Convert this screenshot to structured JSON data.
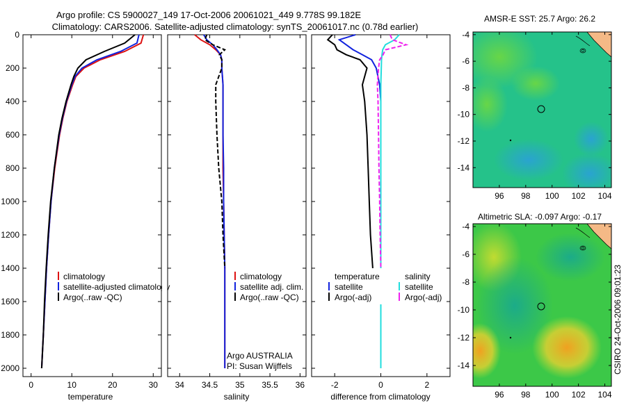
{
  "title_line1": "Argo profile: CS 5900027_149 17-Oct-2006 20061021_449 9.778S 99.182E",
  "title_line2": "Climatology: CARS2006. Satellite-adjusted climatology: synTS_20061017.nc (0.78d earlier)",
  "side_label": "CSIRO 24-Oct-2006 09:01:23",
  "colors": {
    "climatology": "#dd1111",
    "satellite": "#1122dd",
    "argo": "#000000",
    "salinity_satellite": "#22dddd",
    "salinity_argo": "#ee22ee",
    "land": "#f4b986",
    "sea": "#22c27a"
  },
  "chart_data": [
    {
      "type": "line",
      "name": "temperature-profile",
      "xlabel": "temperature",
      "xlim": [
        -2,
        32
      ],
      "ylim": [
        0,
        2050
      ],
      "xticks": [
        "0",
        "10",
        "20",
        "30"
      ],
      "yticks": [
        "0",
        "200",
        "400",
        "600",
        "800",
        "1000",
        "1200",
        "1400",
        "1600",
        "1800",
        "2000"
      ],
      "depth": [
        0,
        50,
        100,
        150,
        200,
        250,
        300,
        400,
        500,
        600,
        800,
        1000,
        1200,
        1400,
        1600,
        1800,
        2000
      ],
      "series": [
        {
          "name": "climatology",
          "values": [
            27.6,
            27.0,
            23.0,
            17.0,
            13.0,
            11.0,
            10.2,
            8.8,
            7.8,
            7.0,
            5.8,
            4.9,
            4.3,
            3.8,
            3.4,
            3.0,
            2.6
          ]
        },
        {
          "name": "satellite-adjusted climatology",
          "values": [
            26.5,
            26.0,
            22.0,
            16.2,
            12.5,
            10.8,
            10.0,
            8.7,
            7.7,
            6.9,
            5.7,
            4.9,
            4.3,
            3.8,
            3.4,
            3.0,
            2.6
          ]
        },
        {
          "name": "Argo(..raw -QC)",
          "values": [
            25.5,
            23.0,
            18.0,
            13.5,
            11.5,
            10.5,
            9.8,
            8.6,
            7.6,
            6.8,
            5.7,
            4.8,
            4.2,
            3.7,
            3.3,
            3.0,
            2.6
          ]
        }
      ],
      "legend": [
        "climatology",
        "satellite-adjusted climatology",
        "Argo(..raw -QC)"
      ]
    },
    {
      "type": "line",
      "name": "salinity-profile",
      "xlabel": "salinity",
      "xlim": [
        33.8,
        36.1
      ],
      "ylim": [
        0,
        2050
      ],
      "xticks": [
        "34",
        "34.5",
        "35",
        "35.5",
        "36"
      ],
      "depth": [
        0,
        30,
        60,
        90,
        120,
        150,
        200,
        300,
        400,
        600,
        800,
        1000,
        1200,
        1400,
        1600,
        1800,
        2000
      ],
      "series": [
        {
          "name": "climatology",
          "values": [
            34.25,
            34.35,
            34.5,
            34.6,
            34.68,
            34.7,
            34.7,
            34.72,
            34.72,
            34.72,
            34.72,
            34.73,
            34.74,
            34.75,
            34.75,
            34.75,
            34.75
          ]
        },
        {
          "name": "satellite adj. clim.",
          "values": [
            34.4,
            34.45,
            34.55,
            34.62,
            34.68,
            34.7,
            34.7,
            34.72,
            34.72,
            34.72,
            34.73,
            34.73,
            34.74,
            34.75,
            34.75,
            34.75,
            34.75
          ]
        },
        {
          "name": "Argo(..raw -QC)",
          "values": [
            34.45,
            34.42,
            34.55,
            34.75,
            34.66,
            34.7,
            34.7,
            34.6,
            34.6,
            34.62,
            34.65,
            34.7,
            34.72,
            34.75,
            null,
            null,
            null
          ]
        }
      ],
      "legend": [
        "climatology",
        "satellite adj. clim.",
        "Argo(..raw -QC)"
      ],
      "annotations": [
        "Argo AUSTRALIA",
        "PI: Susan Wijffels"
      ]
    },
    {
      "type": "line",
      "name": "difference-profile",
      "xlabel": "difference from climatology",
      "xlim": [
        -3,
        3
      ],
      "ylim": [
        0,
        2050
      ],
      "xticks": [
        "-2",
        "0",
        "2"
      ],
      "depth": [
        0,
        30,
        60,
        90,
        120,
        150,
        200,
        300,
        400,
        600,
        800,
        1000,
        1200,
        1400,
        1600,
        1800,
        2000
      ],
      "series": [
        {
          "name": "temperature satellite",
          "values": [
            -1.1,
            -1.8,
            -1.5,
            -1.2,
            -0.8,
            -0.4,
            -0.2,
            -0.05,
            0.0,
            0.0,
            0.0,
            0.0,
            0.0,
            0.0,
            0.0,
            0.0,
            0.0
          ]
        },
        {
          "name": "temperature Argo(-adj)",
          "values": [
            -2.1,
            -2.3,
            -2.0,
            -1.9,
            -1.5,
            -0.9,
            -0.6,
            -0.8,
            -0.7,
            -0.6,
            -0.55,
            -0.5,
            -0.45,
            -0.35,
            null,
            null,
            null
          ]
        },
        {
          "name": "salinity satellite",
          "values": [
            0.8,
            0.6,
            0.2,
            0.08,
            0.05,
            0.03,
            0.02,
            0.0,
            0.0,
            0.0,
            0.0,
            0.0,
            0.0,
            0.0,
            0.0,
            0.0,
            0.0
          ]
        },
        {
          "name": "salinity Argo(-adj)",
          "values": [
            0.4,
            0.5,
            1.1,
            0.2,
            0.1,
            -0.05,
            -0.1,
            -0.15,
            -0.12,
            -0.1,
            -0.08,
            -0.05,
            -0.03,
            0.0,
            null,
            null,
            null
          ]
        }
      ],
      "legend_headings": [
        "temperature",
        "salinity"
      ],
      "legend": [
        "satellite",
        "Argo(-adj)",
        "satellite",
        "Argo(-adj)"
      ]
    },
    {
      "type": "heatmap",
      "name": "sst-map",
      "title": "AMSR-E SST: 25.7 Argo: 26.2",
      "xlim": [
        94,
        104.5
      ],
      "ylim": [
        -15.5,
        -3.8
      ],
      "xticks": [
        "96",
        "98",
        "100",
        "102",
        "104"
      ],
      "yticks": [
        "-4",
        "-6",
        "-8",
        "-10",
        "-12",
        "-14"
      ],
      "argo_position": {
        "lon": 99.182,
        "lat": -9.778
      }
    },
    {
      "type": "heatmap",
      "name": "sla-map",
      "title": "Altimetric SLA: -0.097 Argo: -0.17",
      "xlim": [
        94,
        104.5
      ],
      "ylim": [
        -15.5,
        -3.8
      ],
      "xticks": [
        "96",
        "98",
        "100",
        "102",
        "104"
      ],
      "yticks": [
        "-4",
        "-6",
        "-8",
        "-10",
        "-12",
        "-14"
      ],
      "argo_position": {
        "lon": 99.182,
        "lat": -9.778
      }
    }
  ]
}
